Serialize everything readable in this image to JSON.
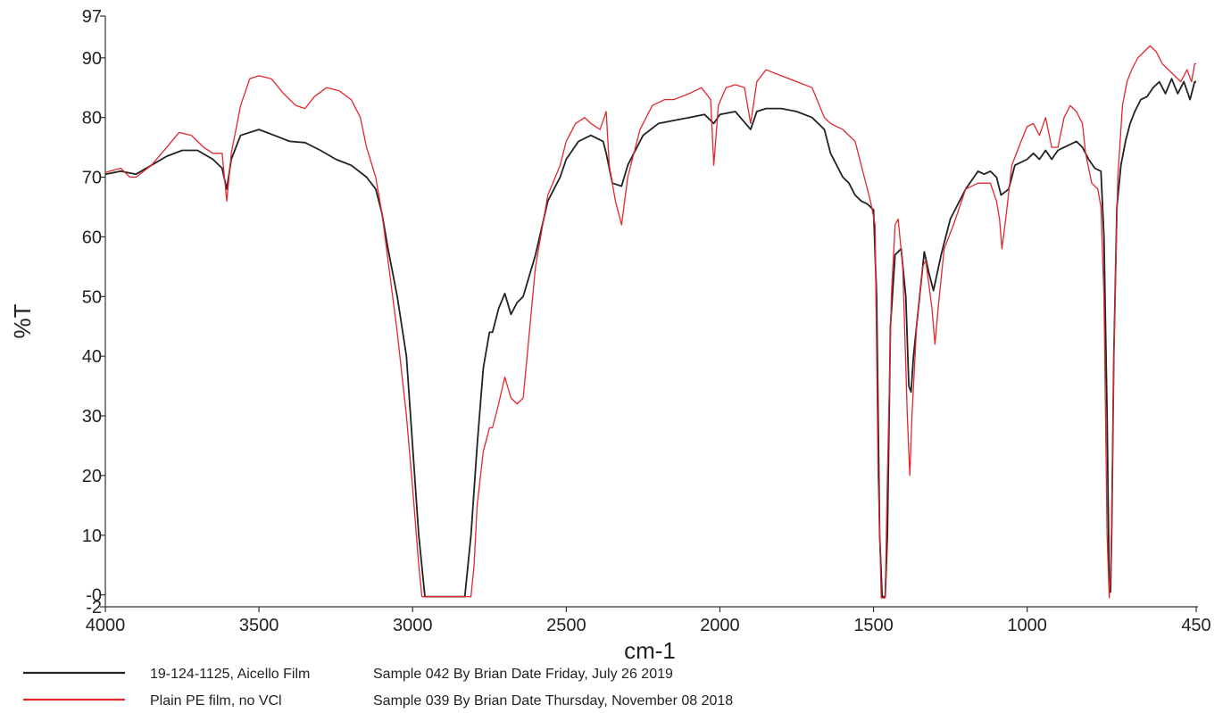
{
  "chart_data": {
    "type": "line",
    "xlabel": "cm-1",
    "ylabel": "%T",
    "xlim": [
      4000,
      450
    ],
    "ylim": [
      -2,
      97
    ],
    "x_reversed": true,
    "grid": false,
    "legend_position": "bottom-left",
    "x_ticks": [
      4000,
      3500,
      3000,
      2500,
      2000,
      1500,
      1000,
      450
    ],
    "y_ticks": [
      {
        "value": 97,
        "label": "97"
      },
      {
        "value": 90,
        "label": "90"
      },
      {
        "value": 80,
        "label": "80"
      },
      {
        "value": 70,
        "label": "70"
      },
      {
        "value": 60,
        "label": "60"
      },
      {
        "value": 50,
        "label": "50"
      },
      {
        "value": 40,
        "label": "40"
      },
      {
        "value": 30,
        "label": "30"
      },
      {
        "value": 20,
        "label": "20"
      },
      {
        "value": 10,
        "label": "10"
      },
      {
        "value": 0,
        "label": "-0"
      },
      {
        "value": -2,
        "label": "-2"
      }
    ],
    "series": [
      {
        "name": "19-124-1125, Aicello Film",
        "description": "Sample 042 By Brian Date Friday, July 26 2019",
        "color": "#222222",
        "points": [
          [
            4000,
            70.5
          ],
          [
            3950,
            71
          ],
          [
            3900,
            70.5
          ],
          [
            3850,
            72
          ],
          [
            3800,
            73.5
          ],
          [
            3750,
            74.5
          ],
          [
            3700,
            74.5
          ],
          [
            3650,
            73
          ],
          [
            3620,
            71.5
          ],
          [
            3605,
            68
          ],
          [
            3590,
            73
          ],
          [
            3560,
            77
          ],
          [
            3500,
            78
          ],
          [
            3450,
            77
          ],
          [
            3400,
            76
          ],
          [
            3350,
            75.8
          ],
          [
            3300,
            74.5
          ],
          [
            3250,
            73
          ],
          [
            3200,
            72
          ],
          [
            3150,
            70
          ],
          [
            3120,
            68
          ],
          [
            3100,
            64
          ],
          [
            3080,
            58
          ],
          [
            3050,
            50
          ],
          [
            3020,
            40
          ],
          [
            3000,
            25
          ],
          [
            2980,
            10
          ],
          [
            2960,
            -0.3
          ],
          [
            2830,
            -0.3
          ],
          [
            2810,
            10
          ],
          [
            2790,
            25
          ],
          [
            2770,
            38
          ],
          [
            2750,
            44
          ],
          [
            2740,
            44
          ],
          [
            2720,
            48
          ],
          [
            2700,
            50.5
          ],
          [
            2680,
            47
          ],
          [
            2660,
            49
          ],
          [
            2640,
            50
          ],
          [
            2600,
            57
          ],
          [
            2560,
            66
          ],
          [
            2520,
            70
          ],
          [
            2500,
            73
          ],
          [
            2460,
            76
          ],
          [
            2420,
            77
          ],
          [
            2380,
            76
          ],
          [
            2370,
            74
          ],
          [
            2350,
            69
          ],
          [
            2320,
            68.5
          ],
          [
            2300,
            72
          ],
          [
            2250,
            77
          ],
          [
            2200,
            79
          ],
          [
            2150,
            79.5
          ],
          [
            2100,
            80
          ],
          [
            2050,
            80.5
          ],
          [
            2020,
            79
          ],
          [
            2000,
            80.5
          ],
          [
            1950,
            81
          ],
          [
            1900,
            78
          ],
          [
            1880,
            81
          ],
          [
            1850,
            81.5
          ],
          [
            1800,
            81.5
          ],
          [
            1750,
            81
          ],
          [
            1700,
            80
          ],
          [
            1660,
            78
          ],
          [
            1640,
            74
          ],
          [
            1620,
            72
          ],
          [
            1600,
            70
          ],
          [
            1580,
            69
          ],
          [
            1560,
            67
          ],
          [
            1540,
            66
          ],
          [
            1520,
            65.5
          ],
          [
            1500,
            64.5
          ],
          [
            1490,
            50
          ],
          [
            1480,
            10
          ],
          [
            1472,
            -0.3
          ],
          [
            1462,
            -0.3
          ],
          [
            1455,
            10
          ],
          [
            1445,
            45
          ],
          [
            1430,
            57
          ],
          [
            1410,
            58
          ],
          [
            1395,
            50
          ],
          [
            1385,
            35
          ],
          [
            1378,
            34
          ],
          [
            1370,
            40
          ],
          [
            1350,
            50
          ],
          [
            1335,
            57.5
          ],
          [
            1320,
            54
          ],
          [
            1305,
            51
          ],
          [
            1280,
            57
          ],
          [
            1250,
            63
          ],
          [
            1200,
            68
          ],
          [
            1160,
            71
          ],
          [
            1140,
            70.5
          ],
          [
            1120,
            71
          ],
          [
            1100,
            70
          ],
          [
            1085,
            67
          ],
          [
            1060,
            68
          ],
          [
            1040,
            72
          ],
          [
            1000,
            73
          ],
          [
            980,
            74
          ],
          [
            960,
            73
          ],
          [
            940,
            74.5
          ],
          [
            920,
            73
          ],
          [
            900,
            74.5
          ],
          [
            880,
            75
          ],
          [
            860,
            75.5
          ],
          [
            840,
            76
          ],
          [
            820,
            75
          ],
          [
            800,
            73
          ],
          [
            780,
            71.5
          ],
          [
            760,
            71
          ],
          [
            750,
            60
          ],
          [
            740,
            30
          ],
          [
            733,
            1
          ],
          [
            729,
            0.5
          ],
          [
            725,
            10
          ],
          [
            718,
            40
          ],
          [
            708,
            65
          ],
          [
            695,
            72
          ],
          [
            680,
            76
          ],
          [
            665,
            79
          ],
          [
            650,
            81
          ],
          [
            630,
            83
          ],
          [
            610,
            83.5
          ],
          [
            590,
            85
          ],
          [
            570,
            86
          ],
          [
            550,
            84
          ],
          [
            530,
            86.5
          ],
          [
            510,
            84
          ],
          [
            490,
            86
          ],
          [
            470,
            83
          ],
          [
            455,
            86
          ],
          [
            450,
            86
          ]
        ]
      },
      {
        "name": "Plain PE film, no VCl",
        "description": "Sample 039 By Brian Date Thursday, November 08 2018",
        "color": "#e0282e",
        "points": [
          [
            4000,
            70.8
          ],
          [
            3950,
            71.5
          ],
          [
            3920,
            70
          ],
          [
            3900,
            70
          ],
          [
            3850,
            72
          ],
          [
            3800,
            75
          ],
          [
            3760,
            77.5
          ],
          [
            3720,
            77
          ],
          [
            3680,
            75
          ],
          [
            3650,
            74
          ],
          [
            3620,
            74
          ],
          [
            3605,
            66
          ],
          [
            3590,
            74
          ],
          [
            3560,
            82
          ],
          [
            3530,
            86.5
          ],
          [
            3500,
            87
          ],
          [
            3460,
            86.5
          ],
          [
            3420,
            84
          ],
          [
            3380,
            82
          ],
          [
            3350,
            81.5
          ],
          [
            3320,
            83.5
          ],
          [
            3280,
            85
          ],
          [
            3240,
            84.5
          ],
          [
            3200,
            83
          ],
          [
            3170,
            80
          ],
          [
            3150,
            75
          ],
          [
            3120,
            70
          ],
          [
            3100,
            64
          ],
          [
            3080,
            56
          ],
          [
            3050,
            44
          ],
          [
            3020,
            30
          ],
          [
            3000,
            18
          ],
          [
            2980,
            5
          ],
          [
            2970,
            -0.3
          ],
          [
            2810,
            -0.3
          ],
          [
            2800,
            5
          ],
          [
            2790,
            15
          ],
          [
            2770,
            24
          ],
          [
            2750,
            28
          ],
          [
            2740,
            28
          ],
          [
            2720,
            32
          ],
          [
            2700,
            36.5
          ],
          [
            2680,
            33
          ],
          [
            2660,
            32
          ],
          [
            2640,
            33
          ],
          [
            2600,
            55
          ],
          [
            2560,
            67
          ],
          [
            2520,
            72
          ],
          [
            2500,
            76
          ],
          [
            2470,
            79
          ],
          [
            2440,
            80
          ],
          [
            2420,
            79
          ],
          [
            2390,
            78
          ],
          [
            2370,
            81
          ],
          [
            2360,
            72
          ],
          [
            2340,
            66
          ],
          [
            2320,
            62
          ],
          [
            2300,
            70
          ],
          [
            2260,
            78
          ],
          [
            2220,
            82
          ],
          [
            2180,
            83
          ],
          [
            2150,
            83
          ],
          [
            2100,
            84
          ],
          [
            2060,
            85
          ],
          [
            2030,
            83
          ],
          [
            2020,
            72
          ],
          [
            2005,
            82
          ],
          [
            1980,
            85
          ],
          [
            1950,
            85.5
          ],
          [
            1920,
            85
          ],
          [
            1900,
            79
          ],
          [
            1880,
            86
          ],
          [
            1850,
            88
          ],
          [
            1800,
            87
          ],
          [
            1750,
            86
          ],
          [
            1700,
            85
          ],
          [
            1660,
            80
          ],
          [
            1640,
            79
          ],
          [
            1600,
            78
          ],
          [
            1560,
            76
          ],
          [
            1530,
            70
          ],
          [
            1510,
            66
          ],
          [
            1495,
            62
          ],
          [
            1485,
            20
          ],
          [
            1475,
            -0.5
          ],
          [
            1462,
            -0.5
          ],
          [
            1455,
            20
          ],
          [
            1442,
            50
          ],
          [
            1430,
            62
          ],
          [
            1420,
            63
          ],
          [
            1405,
            55
          ],
          [
            1390,
            30
          ],
          [
            1382,
            20
          ],
          [
            1375,
            30
          ],
          [
            1360,
            45
          ],
          [
            1340,
            55
          ],
          [
            1330,
            56
          ],
          [
            1310,
            48
          ],
          [
            1300,
            42
          ],
          [
            1290,
            48
          ],
          [
            1270,
            58
          ],
          [
            1240,
            62
          ],
          [
            1200,
            68
          ],
          [
            1160,
            69
          ],
          [
            1120,
            69
          ],
          [
            1100,
            66
          ],
          [
            1090,
            63
          ],
          [
            1082,
            58
          ],
          [
            1070,
            63
          ],
          [
            1050,
            72
          ],
          [
            1020,
            76
          ],
          [
            1000,
            78.5
          ],
          [
            980,
            79
          ],
          [
            960,
            77
          ],
          [
            940,
            80
          ],
          [
            920,
            75
          ],
          [
            900,
            75
          ],
          [
            880,
            80
          ],
          [
            860,
            82
          ],
          [
            840,
            81
          ],
          [
            820,
            79
          ],
          [
            810,
            74
          ],
          [
            790,
            69
          ],
          [
            770,
            68
          ],
          [
            760,
            65
          ],
          [
            750,
            50
          ],
          [
            740,
            10
          ],
          [
            733,
            -0.5
          ],
          [
            727,
            5
          ],
          [
            718,
            40
          ],
          [
            705,
            70
          ],
          [
            690,
            82
          ],
          [
            675,
            86
          ],
          [
            660,
            88
          ],
          [
            640,
            90
          ],
          [
            620,
            91
          ],
          [
            600,
            92
          ],
          [
            580,
            91
          ],
          [
            560,
            89
          ],
          [
            540,
            88
          ],
          [
            520,
            87
          ],
          [
            500,
            86
          ],
          [
            480,
            88
          ],
          [
            465,
            86
          ],
          [
            455,
            89
          ],
          [
            450,
            89
          ]
        ]
      }
    ]
  },
  "legend": {
    "items": [
      {
        "label": "19-124-1125, Aicello Film",
        "detail": "Sample 042 By Brian Date Friday, July 26 2019",
        "color": "#222222"
      },
      {
        "label": "Plain PE film, no VCl",
        "detail": "Sample 039 By Brian Date Thursday, November 08 2018",
        "color": "#e0282e"
      }
    ]
  }
}
